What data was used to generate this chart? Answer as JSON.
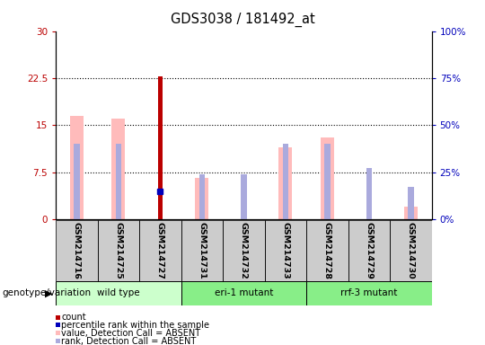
{
  "title": "GDS3038 / 181492_at",
  "samples": [
    "GSM214716",
    "GSM214725",
    "GSM214727",
    "GSM214731",
    "GSM214732",
    "GSM214733",
    "GSM214728",
    "GSM214729",
    "GSM214730"
  ],
  "count_values": [
    null,
    null,
    22.7,
    null,
    null,
    null,
    null,
    null,
    null
  ],
  "percentile_rank": [
    null,
    null,
    14.7,
    null,
    null,
    null,
    null,
    null,
    null
  ],
  "value_absent": [
    16.5,
    16.0,
    null,
    6.5,
    null,
    11.5,
    13.0,
    null,
    2.0
  ],
  "rank_absent": [
    40.0,
    40.0,
    null,
    null,
    24.0,
    40.0,
    40.0,
    27.0,
    17.0
  ],
  "rank_absent_standalone": [
    null,
    null,
    null,
    24.0,
    null,
    null,
    null,
    null,
    null
  ],
  "ylim_left": [
    0,
    30
  ],
  "ylim_right": [
    0,
    100
  ],
  "yticks_left": [
    0,
    7.5,
    15,
    22.5,
    30
  ],
  "yticks_right": [
    0,
    25,
    50,
    75,
    100
  ],
  "yticklabels_left": [
    "0",
    "7.5",
    "15",
    "22.5",
    "30"
  ],
  "yticklabels_right": [
    "0%",
    "25%",
    "50%",
    "75%",
    "100%"
  ],
  "color_count": "#bb0000",
  "color_percentile": "#0000bb",
  "color_value_absent": "#ffbbbb",
  "color_rank_absent": "#aaaadd",
  "group_label": "genotype/variation",
  "groups": [
    {
      "name": "wild type",
      "start": 0,
      "end": 2,
      "color": "#ccffcc"
    },
    {
      "name": "eri-1 mutant",
      "start": 3,
      "end": 5,
      "color": "#88ee88"
    },
    {
      "name": "rrf-3 mutant",
      "start": 6,
      "end": 8,
      "color": "#88ee88"
    }
  ]
}
